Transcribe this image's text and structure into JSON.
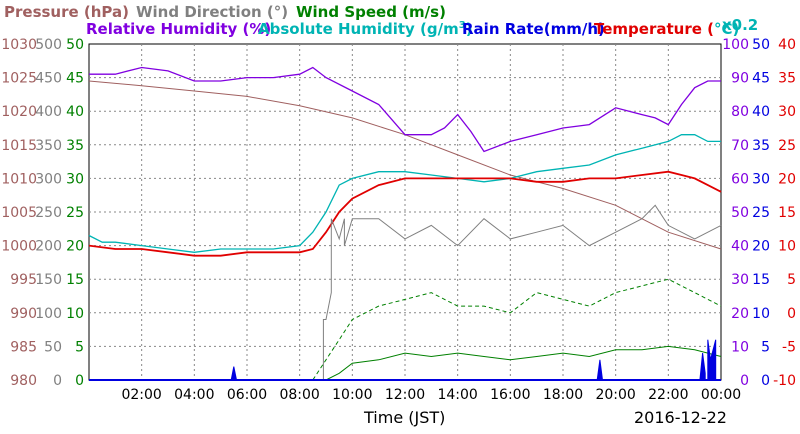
{
  "chart_data": {
    "type": "line",
    "date_label": "2016-12-22",
    "xlabel": "Time (JST)",
    "x_ticks": [
      "02:00",
      "04:00",
      "06:00",
      "08:00",
      "10:00",
      "12:00",
      "14:00",
      "16:00",
      "18:00",
      "20:00",
      "22:00",
      "00:00"
    ],
    "xlim_hours": [
      0,
      24
    ],
    "series_labels": {
      "pressure": "Pressure (hPa)",
      "wind_direction": "Wind Direction (°)",
      "wind_speed": "Wind Speed (m/s)",
      "humidity": "Relative Humidity (%)",
      "abs_humidity_prefix": "Absolute Humidity (g/m",
      "abs_humidity_sup": "3",
      "abs_humidity_suffix": ")",
      "rain_rate": "Rain Rate(mm/h)",
      "temperature_prefix": "Temperature (",
      "temperature_unit": "°C)",
      "scale_note": "x0.2"
    },
    "colors": {
      "pressure": "#a06060",
      "wind_direction": "#808080",
      "wind_speed": "#008000",
      "humidity": "#8000e0",
      "abs_humidity": "#00b4b4",
      "rain": "#0000e0",
      "temperature": "#e00000"
    },
    "axes": {
      "pressure": {
        "labels": [
          "1030",
          "1025",
          "1020",
          "1015",
          "1010",
          "1005",
          "1000",
          "995",
          "990",
          "985",
          "980"
        ],
        "ylim": [
          980,
          1030
        ]
      },
      "wind_direction": {
        "labels": [
          "500",
          "450",
          "400",
          "350",
          "300",
          "250",
          "200",
          "150",
          "100",
          "50",
          "0"
        ],
        "ylim": [
          0,
          500
        ]
      },
      "wind_speed": {
        "labels": [
          "50",
          "45",
          "40",
          "35",
          "30",
          "25",
          "20",
          "15",
          "10",
          "5",
          "0"
        ],
        "ylim": [
          0,
          50
        ]
      },
      "humidity": {
        "labels": [
          "100",
          "90",
          "80",
          "70",
          "60",
          "50",
          "40",
          "30",
          "20",
          "10",
          "0"
        ],
        "ylim": [
          0,
          100
        ]
      },
      "rain_rate": {
        "labels": [
          "50",
          "45",
          "40",
          "35",
          "30",
          "25",
          "20",
          "15",
          "10",
          "5",
          "0"
        ],
        "ylim": [
          0,
          50
        ]
      },
      "temperature": {
        "labels": [
          "40",
          "35",
          "30",
          "25",
          "20",
          "15",
          "10",
          "5",
          "0",
          "-5",
          "-10"
        ],
        "ylim": [
          -10,
          40
        ]
      }
    },
    "series": [
      {
        "key": "pressure",
        "x": [
          0,
          2,
          4,
          6,
          8,
          10,
          12,
          14,
          16,
          18,
          20,
          22,
          24
        ],
        "y": [
          1024.5,
          1023.8,
          1023,
          1022.2,
          1020.8,
          1019,
          1016.5,
          1013.5,
          1010.5,
          1008.5,
          1006,
          1002,
          999.5
        ]
      },
      {
        "key": "humidity",
        "x": [
          0,
          1,
          2,
          3,
          4,
          5,
          6,
          7,
          8,
          8.5,
          9,
          10,
          11,
          12,
          13,
          13.5,
          14,
          14.5,
          15,
          16,
          17,
          18,
          19,
          20,
          21,
          21.5,
          22,
          22.5,
          23,
          23.5,
          24
        ],
        "y": [
          91,
          91,
          93,
          92,
          89,
          89,
          90,
          90,
          91,
          93,
          90,
          86,
          82,
          73,
          73,
          75,
          79,
          74,
          68,
          71,
          73,
          75,
          76,
          81,
          79,
          78,
          76,
          82,
          87,
          89,
          89
        ]
      },
      {
        "key": "abs_humidity",
        "x": [
          0,
          0.5,
          1,
          2,
          3,
          4,
          5,
          6,
          7,
          8,
          8.5,
          9,
          9.5,
          10,
          11,
          12,
          13,
          14,
          15,
          16,
          17,
          18,
          19,
          20,
          21,
          22,
          22.5,
          23,
          23.5,
          24
        ],
        "y": [
          21.5,
          20.5,
          20.5,
          20,
          19.5,
          19,
          19.5,
          19.5,
          19.5,
          20,
          22,
          25,
          29,
          30,
          31,
          31,
          30.5,
          30,
          29.5,
          30,
          31,
          31.5,
          32,
          33.5,
          34.5,
          35.5,
          36.5,
          36.5,
          35.5,
          35.5
        ]
      },
      {
        "key": "temperature",
        "x": [
          0,
          1,
          2,
          3,
          4,
          5,
          6,
          7,
          8,
          8.5,
          9,
          9.5,
          10,
          11,
          12,
          13,
          14,
          15,
          16,
          17,
          18,
          19,
          20,
          21,
          22,
          22.5,
          23,
          23.5,
          24
        ],
        "y": [
          10,
          9.5,
          9.5,
          9,
          8.5,
          8.5,
          9,
          9,
          9,
          9.5,
          12,
          15,
          17,
          19,
          20,
          20,
          20,
          20,
          20,
          19.5,
          19.5,
          20,
          20,
          20.5,
          21,
          20.5,
          20,
          19,
          18
        ]
      },
      {
        "key": "wind_direction",
        "x": [
          0,
          8.9,
          8.9,
          9,
          9.2,
          9.2,
          9.5,
          9.7,
          9.7,
          10,
          11,
          12,
          13,
          14,
          15,
          16,
          17,
          18,
          19,
          20,
          21,
          21.5,
          22,
          23,
          24
        ],
        "y": [
          0,
          0,
          90,
          90,
          130,
          240,
          210,
          240,
          200,
          240,
          240,
          210,
          230,
          200,
          240,
          210,
          220,
          230,
          200,
          220,
          240,
          260,
          230,
          210,
          230
        ]
      },
      {
        "key": "wind_speed_max",
        "x": [
          0,
          8.5,
          9,
          9.5,
          10,
          11,
          12,
          13,
          14,
          15,
          16,
          17,
          18,
          19,
          20,
          21,
          22,
          23,
          24
        ],
        "y": [
          0,
          0,
          3,
          6,
          9,
          11,
          12,
          13,
          11,
          11,
          10,
          13,
          12,
          11,
          13,
          14,
          15,
          13,
          11
        ]
      },
      {
        "key": "wind_speed_avg",
        "x": [
          0,
          9,
          9.5,
          10,
          11,
          12,
          13,
          14,
          15,
          16,
          17,
          18,
          19,
          20,
          21,
          22,
          23,
          24
        ],
        "y": [
          0,
          0,
          1,
          2.5,
          3,
          4,
          3.5,
          4,
          3.5,
          3,
          3.5,
          4,
          3.5,
          4.5,
          4.5,
          5,
          4.5,
          3.5
        ]
      },
      {
        "key": "rain_rate",
        "x": [
          5.4,
          5.5,
          5.6,
          19.3,
          19.4,
          19.5,
          23.2,
          23.3,
          23.4,
          23.5,
          23.6,
          23.8,
          23.9,
          24
        ],
        "y": [
          0,
          2,
          0,
          0,
          3,
          0,
          0,
          4,
          1,
          6,
          3,
          6,
          2,
          7
        ]
      }
    ]
  }
}
